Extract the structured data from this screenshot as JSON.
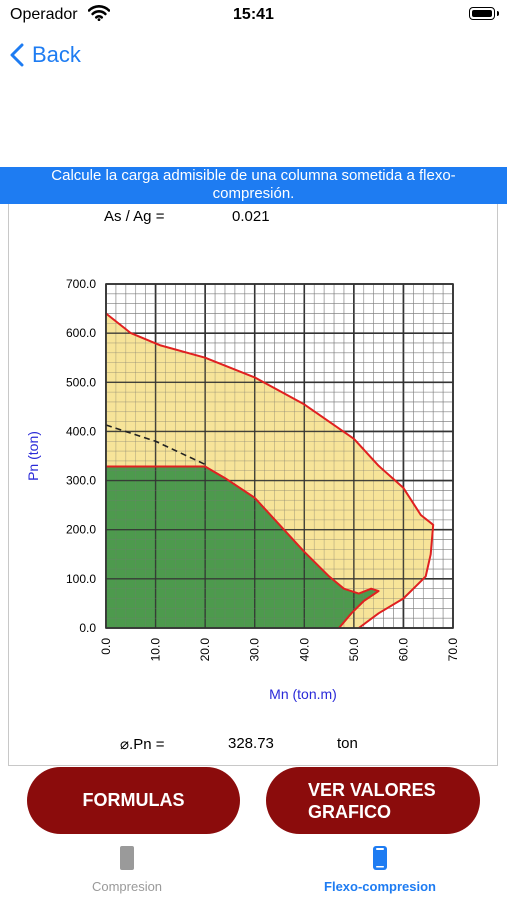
{
  "status_bar": {
    "carrier": "Operador",
    "time": "15:41"
  },
  "nav": {
    "back_label": "Back"
  },
  "banner": {
    "text": "Calcule la carga admisible de una columna sometida a flexo-\ncompresión."
  },
  "ratio": {
    "label": "As / Ag =",
    "value": "0.021"
  },
  "chart_data": {
    "type": "area",
    "xlabel": "Mn (ton.m)",
    "ylabel": "Pn (ton)",
    "xlim": [
      0,
      70
    ],
    "ylim": [
      0,
      700
    ],
    "x_ticks": [
      "0.0",
      "10.0",
      "20.0",
      "30.0",
      "40.0",
      "50.0",
      "60.0",
      "70.0"
    ],
    "y_ticks": [
      "0.0",
      "100.0",
      "200.0",
      "300.0",
      "400.0",
      "500.0",
      "600.0",
      "700.0"
    ],
    "grid": true,
    "colors": {
      "nominal_fill": "#f6df87",
      "design_fill": "#4d9a4d",
      "curve": "#e02020",
      "axis_label": "#2a2ad8"
    },
    "series": [
      {
        "fill": "#f6df87",
        "points": [
          [
            0,
            640
          ],
          [
            5,
            600
          ],
          [
            11,
            575
          ],
          [
            20,
            550
          ],
          [
            30,
            510
          ],
          [
            40,
            455
          ],
          [
            50,
            385
          ],
          [
            55,
            330
          ],
          [
            60,
            285
          ],
          [
            63.5,
            230
          ],
          [
            66,
            210
          ],
          [
            65.5,
            150
          ],
          [
            64.5,
            105
          ],
          [
            63,
            90
          ],
          [
            60,
            60
          ],
          [
            55,
            30
          ],
          [
            51,
            0
          ]
        ]
      },
      {
        "fill": "#4d9a4d",
        "points": [
          [
            0,
            328.73
          ],
          [
            20,
            328.73
          ],
          [
            24,
            305
          ],
          [
            30,
            265
          ],
          [
            35,
            210
          ],
          [
            40,
            155
          ],
          [
            45,
            105
          ],
          [
            48,
            80
          ],
          [
            51,
            70
          ],
          [
            53.5,
            80
          ],
          [
            55,
            75
          ],
          [
            52,
            55
          ],
          [
            49.5,
            30
          ],
          [
            47,
            0
          ]
        ]
      },
      {
        "style": "dashed",
        "points": [
          [
            0,
            413
          ],
          [
            10,
            380
          ],
          [
            20,
            333
          ]
        ]
      }
    ]
  },
  "result": {
    "label": "⌀.Pn =",
    "value": "328.73",
    "unit": "ton"
  },
  "buttons": {
    "formulas": "FORMULAS",
    "ver_valores": "VER VALORES\nGRAFICO"
  },
  "tabs": [
    {
      "label": "Compresion",
      "active": false,
      "icon": "phone-icon"
    },
    {
      "label": "Flexo-compresion",
      "active": true,
      "icon": "phone-icon"
    }
  ]
}
